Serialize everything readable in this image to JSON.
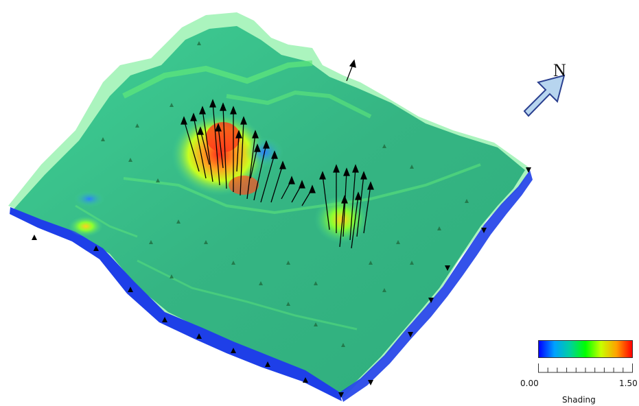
{
  "compass": {
    "label": "N",
    "arrow_fill": "#b7d5ef",
    "arrow_stroke": "#2a3f8f"
  },
  "legend": {
    "title": "Shading",
    "min": "0.00",
    "max": "1.50",
    "gradient_stops": [
      "#0000ff",
      "#00a0ff",
      "#00d0a0",
      "#00ff00",
      "#c8ff00",
      "#ffa000",
      "#ff0000"
    ],
    "tick_count": 11
  },
  "terrain": {
    "surface_color": "#3fbf86",
    "rim_color": "#7fe8a0",
    "cliff_color": "#1e3fe8",
    "hotspot_color": "#ff3a1a",
    "vector_color": "#000000"
  }
}
